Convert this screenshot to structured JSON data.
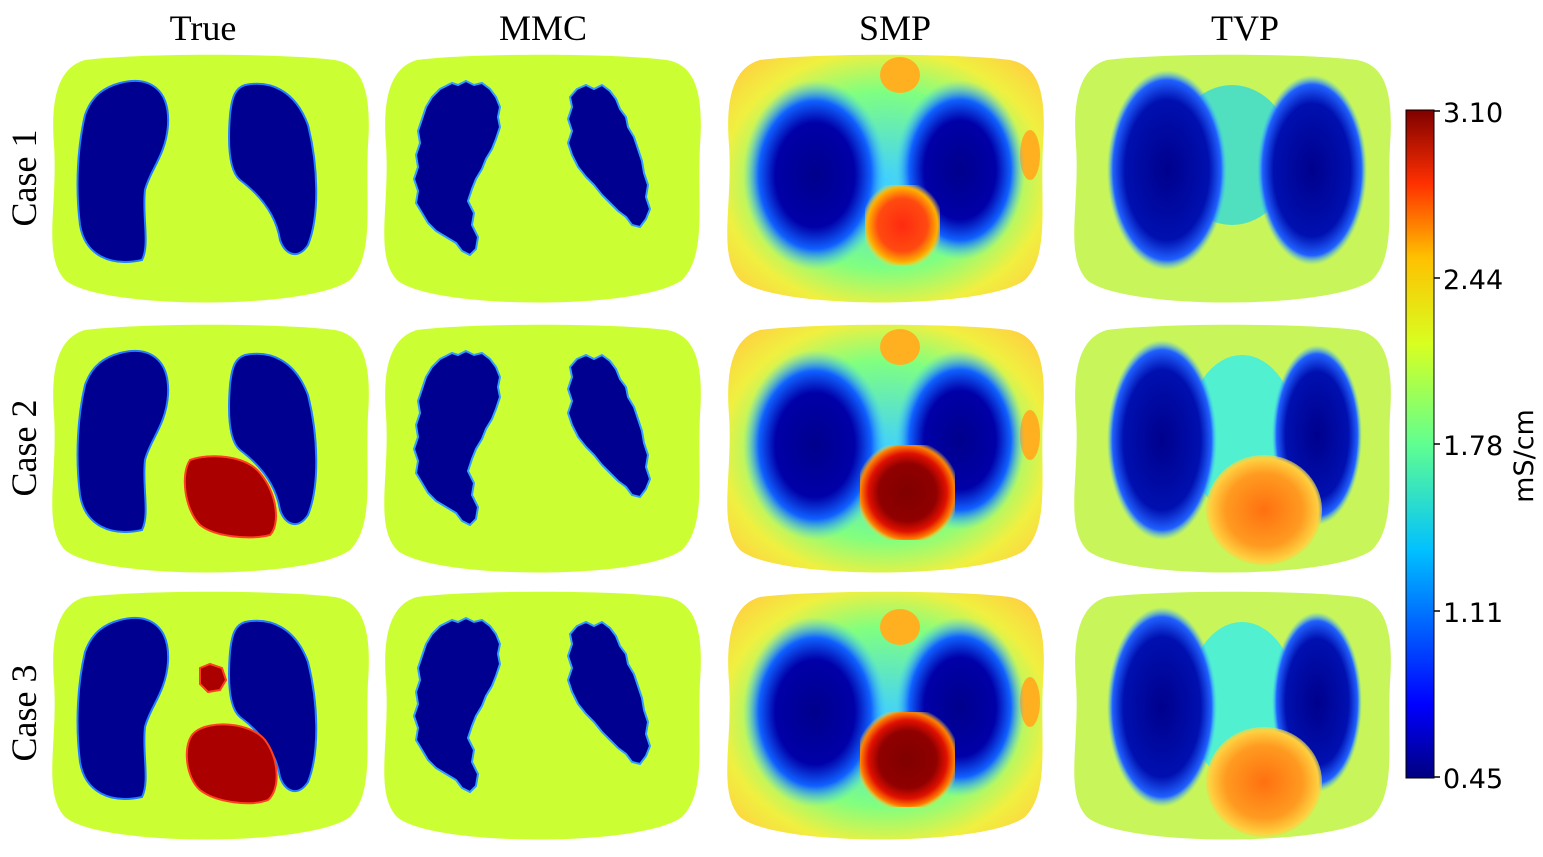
{
  "columns": [
    "True",
    "MMC",
    "SMP",
    "TVP"
  ],
  "rows": [
    "Case 1",
    "Case 2",
    "Case 3"
  ],
  "colorbar": {
    "label": "mS/cm",
    "ticks": [
      "3.10",
      "2.44",
      "1.78",
      "1.11",
      "0.45"
    ],
    "min": 0.45,
    "max": 3.1,
    "colormap": "jet"
  },
  "colors": {
    "background_tissue": "#ccff33",
    "lung": "#000090",
    "heart": "#aa0000",
    "smp_heart_case1": "#ff2a10",
    "smp_heart_dark": "#800000",
    "tvp_heart": "#ff7a10",
    "tvp_chest": "#c8f55a"
  }
}
